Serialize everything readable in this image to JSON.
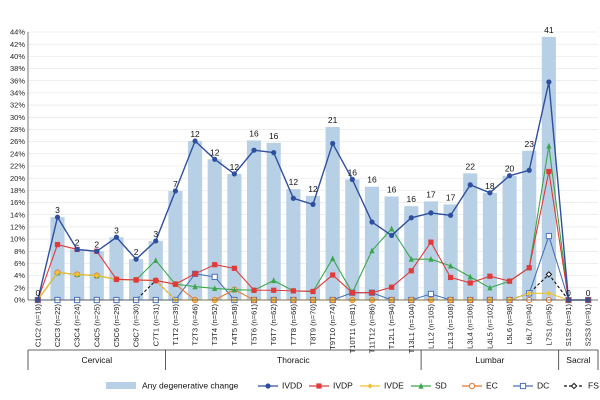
{
  "chart_data": {
    "type": "bar",
    "ylim": [
      0,
      44
    ],
    "y_ticks": [
      0,
      2,
      4,
      6,
      8,
      10,
      12,
      14,
      16,
      18,
      20,
      22,
      24,
      26,
      28,
      30,
      32,
      34,
      36,
      38,
      40,
      42,
      44
    ],
    "y_tick_labels": [
      "0%",
      "2%",
      "4%",
      "6%",
      "8%",
      "10%",
      "12%",
      "14%",
      "16%",
      "18%",
      "20%",
      "22%",
      "24%",
      "26%",
      "28%",
      "30%",
      "32%",
      "34%",
      "36%",
      "38%",
      "40%",
      "42%",
      "44%"
    ],
    "grid": true,
    "categories": [
      "C1C2 (n=19)",
      "C2C3 (n=22)",
      "C3C4 (n=24)",
      "C4C5 (n=25)",
      "C5C6 (n=29)",
      "C6C7 (n=30)",
      "C7T1 (n=31)",
      "T1T2 (n=39)",
      "T2T3 (n=46)",
      "T3T4 (n=52)",
      "T4T5 (n=58)",
      "T5T6 (n=61)",
      "T6T7 (n=62)",
      "T7T8 (n=66)",
      "T8T9 (n=70)",
      "T9T10 (n=74)",
      "T10T11 (n=81)",
      "T11T12 (n=86)",
      "T12L1 (n=94)",
      "T13L1 (n=104)",
      "L1L2 (n=105)",
      "L2L3 (n=108)",
      "L3L4 (n=106)",
      "L4L5 (n=102)",
      "L5L6 (n=98)",
      "L6L7 (n=94)",
      "L7S1 (n=95)",
      "S1S2 (n=91)",
      "S2S3 (n=91)"
    ],
    "bar_series": {
      "name": "Any degenerative change",
      "values": [
        0,
        13.6,
        8.3,
        8,
        10.3,
        6.7,
        9.7,
        17.9,
        26.1,
        23.1,
        20.7,
        26.2,
        25.8,
        18.2,
        17.1,
        28.4,
        19.8,
        18.6,
        17,
        15.4,
        16.2,
        15.7,
        20.8,
        17.6,
        20.4,
        24.5,
        43.2,
        0,
        0
      ],
      "color": "#b8d0e6"
    },
    "bar_labels": [
      "0",
      "3",
      "2",
      "2",
      "3",
      "2",
      "3",
      "7",
      "12",
      "12",
      "12",
      "16",
      "16",
      "12",
      "12",
      "21",
      "16",
      "16",
      "16",
      "16",
      "17",
      "17",
      "22",
      "18",
      "20",
      "23",
      "41",
      "0",
      "0"
    ],
    "series": [
      {
        "name": "IVDD",
        "color": "#2e4f9e",
        "marker": "circle",
        "values": [
          0,
          13.6,
          8.3,
          8,
          10.3,
          6.7,
          9.7,
          17.9,
          26.1,
          23.1,
          20.7,
          24.6,
          24.2,
          16.7,
          15.7,
          25.7,
          19.8,
          12.8,
          10.6,
          13.5,
          14.3,
          13.9,
          18.9,
          17.6,
          20.4,
          21.3,
          35.8,
          0,
          0
        ]
      },
      {
        "name": "IVDP",
        "color": "#e03a3a",
        "marker": "square",
        "values": [
          0,
          9.1,
          8.3,
          8,
          3.4,
          3.3,
          3.2,
          2.6,
          4.3,
          5.8,
          5.2,
          1.6,
          1.6,
          1.5,
          1.4,
          4.1,
          1.2,
          1.2,
          2.1,
          4.8,
          9.5,
          3.7,
          2.8,
          3.9,
          3.1,
          5.3,
          21.1,
          0,
          0
        ]
      },
      {
        "name": "IVDE",
        "color": "#f2c12e",
        "marker": "diamond",
        "values": [
          0,
          4.5,
          4.2,
          4,
          3.4,
          3.3,
          3.2,
          0,
          0,
          0,
          0,
          0,
          0,
          0,
          0,
          0,
          0,
          0,
          0,
          0,
          0,
          0,
          0,
          0,
          0,
          1.1,
          1.1,
          0,
          0
        ]
      },
      {
        "name": "SD",
        "color": "#3aa64a",
        "marker": "triangle",
        "values": [
          0,
          4.5,
          4.2,
          4,
          3.4,
          3.3,
          6.5,
          2.6,
          2.2,
          1.9,
          1.7,
          1.6,
          3.2,
          1.5,
          1.4,
          6.8,
          1.2,
          8.1,
          11.7,
          6.7,
          6.7,
          5.6,
          3.8,
          2.0,
          3.1,
          5.3,
          25.3,
          0,
          0
        ]
      },
      {
        "name": "EC",
        "color": "#e8772e",
        "marker": "circle-open",
        "values": [
          0,
          4.5,
          4.2,
          4,
          3.4,
          3.3,
          3.2,
          2.6,
          0,
          0,
          1.7,
          0,
          0,
          0,
          0,
          0,
          0,
          0,
          0,
          0,
          0,
          0,
          0,
          0,
          0,
          0,
          0,
          0,
          0
        ]
      },
      {
        "name": "DC",
        "color": "#4a72b8",
        "marker": "square-open",
        "values": [
          0,
          0,
          0,
          0,
          0,
          0,
          0,
          0,
          4.3,
          3.8,
          0,
          0,
          0,
          0,
          0,
          0,
          1.2,
          1.2,
          0,
          0,
          1.0,
          0,
          0,
          0,
          0,
          1.1,
          10.5,
          0,
          0
        ]
      },
      {
        "name": "FS",
        "color": "#111111",
        "marker": "diamond-open",
        "dashed": true,
        "values": [
          0,
          0,
          0,
          0,
          0,
          0,
          3.2,
          0,
          0,
          0,
          0,
          0,
          0,
          0,
          0,
          0,
          0,
          0,
          0,
          0,
          0,
          0,
          0,
          0,
          0,
          1.1,
          4.2,
          0,
          0
        ]
      }
    ],
    "segments": [
      {
        "label": "Cervical",
        "from": 0,
        "to": 6
      },
      {
        "label": "Thoracic",
        "from": 7,
        "to": 19
      },
      {
        "label": "Lumbar",
        "from": 20,
        "to": 26
      },
      {
        "label": "Sacral",
        "from": 27,
        "to": 28
      }
    ],
    "legend_position": "bottom"
  }
}
